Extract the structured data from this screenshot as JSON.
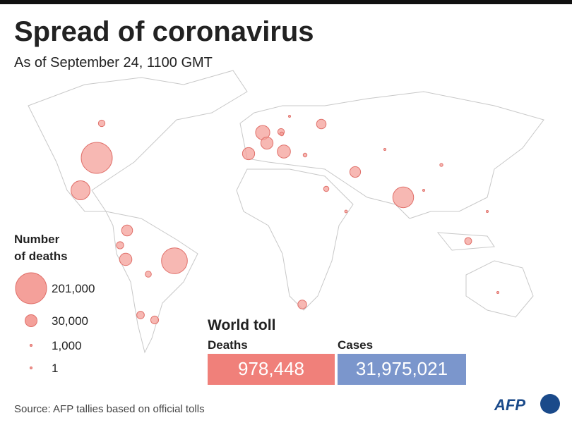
{
  "header": {
    "title": "Spread of coronavirus",
    "subtitle": "As of September 24, 1100 GMT"
  },
  "legend": {
    "title": [
      "Number",
      "of deaths"
    ],
    "items": [
      {
        "value": 201000,
        "label": "201,000"
      },
      {
        "value": 30000,
        "label": "30,000"
      },
      {
        "value": 1000,
        "label": "1,000"
      },
      {
        "value": 1,
        "label": "1"
      }
    ]
  },
  "bubble_color": "#f4a09a",
  "bubbles": [
    201000,
    139000,
    90000,
    75000,
    42000,
    36000,
    31000,
    31000,
    32000,
    25000,
    24000,
    19000,
    16000,
    13000,
    12000,
    11000,
    10000,
    9000,
    9000,
    7700,
    5800,
    3000,
    3000,
    2000,
    1500,
    1000,
    800,
    600,
    400,
    300
  ],
  "world_toll": {
    "title": "World toll",
    "deaths_label": "Deaths",
    "deaths": "978,448",
    "deaths_color": "#f0807a",
    "cases_label": "Cases",
    "cases": "31,975,021",
    "cases_color": "#7b96cc"
  },
  "footer": {
    "source": "Source: AFP tallies based on official tolls",
    "logo": "AFP"
  }
}
